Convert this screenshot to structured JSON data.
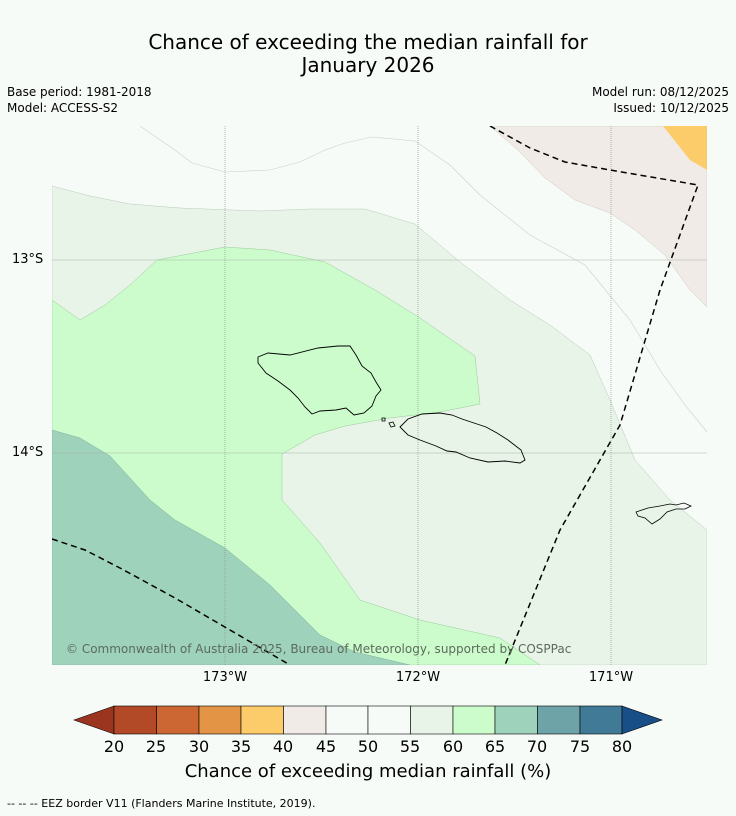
{
  "header": {
    "title_line1": "Chance of exceeding the median rainfall for",
    "title_line2": "January 2026",
    "base_period": "Base period: 1981-2018",
    "model": "Model: ACCESS-S2",
    "model_run": "Model run: 08/12/2025",
    "issued": "Issued: 10/12/2025"
  },
  "map": {
    "lat_labels": [
      "13°S",
      "14°S"
    ],
    "lon_labels": [
      "173°W",
      "172°W",
      "171°W"
    ],
    "copyright": "© Commonwealth of Australia 2025, Bureau of Meteorology, supported by COSPPac"
  },
  "colorbar": {
    "ticks": [
      "20",
      "25",
      "30",
      "35",
      "40",
      "45",
      "50",
      "55",
      "60",
      "65",
      "70",
      "75",
      "80"
    ],
    "colors": {
      "under": "#9b3520",
      "c20_25": "#b34a27",
      "c25_30": "#cc6633",
      "c30_35": "#e39444",
      "c35_40": "#fdcc6a",
      "c40_45": "#f0ebe6",
      "c45_50": "#f7fbf8",
      "c50_55": "#f7fbf8",
      "c55_60": "#e8f4e8",
      "c60_65": "#ccfccc",
      "c65_70": "#9ed2bb",
      "c70_75": "#6ea3a7",
      "c75_80": "#417a97",
      "over": "#174f86"
    },
    "label": "Chance of exceeding median rainfall (%)"
  },
  "footer": {
    "eez_note": "--  --  -- EEZ border V11 (Flanders Marine Institute, 2019)."
  }
}
